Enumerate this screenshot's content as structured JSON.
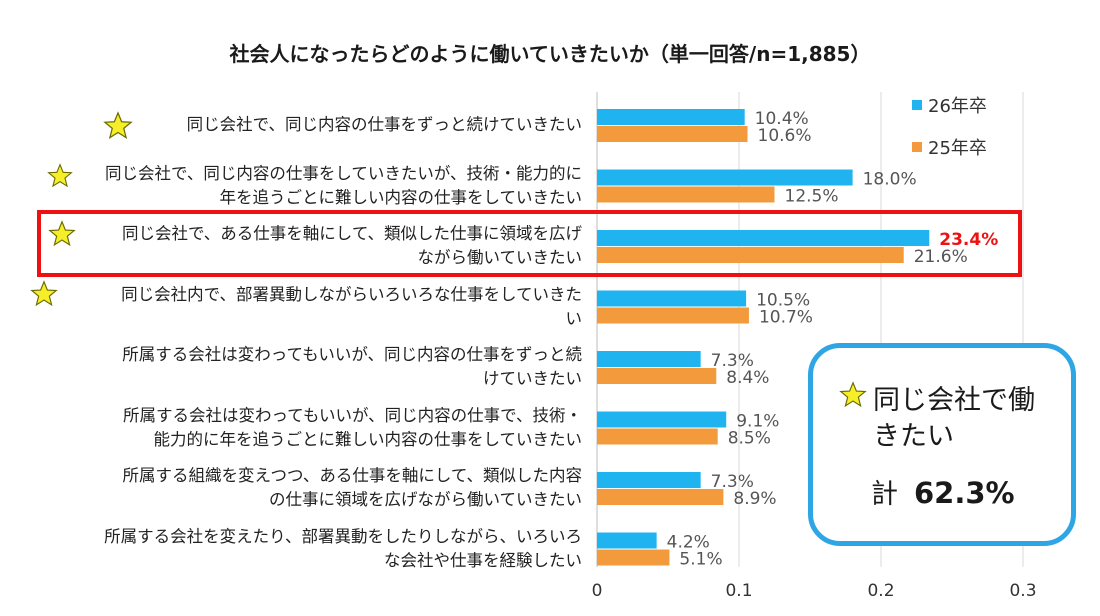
{
  "title": "社会人になったらどのように働いていきたいか（単一回答/n=1,885）",
  "legend": [
    {
      "name": "26年卒",
      "color": "#1fb4f0"
    },
    {
      "name": "25年卒",
      "color": "#f39b3c"
    }
  ],
  "highlight_color": "#ee1111",
  "chart_data": {
    "type": "bar",
    "orientation": "horizontal",
    "title": "社会人になったらどのように働いていきたいか（単一回答/n=1,885）",
    "categories": [
      {
        "lines": [
          "同じ会社で、同じ内容の仕事をずっと続けていきたい"
        ],
        "star": true
      },
      {
        "lines": [
          "同じ会社で、同じ内容の仕事をしていきたいが、技術・能力的に",
          "年を追うごとに難しい内容の仕事をしていきたい"
        ],
        "star": true
      },
      {
        "lines": [
          "同じ会社で、ある仕事を軸にして、類似した仕事に領域を広げ",
          "ながら働いていきたい"
        ],
        "star": true,
        "highlighted": true
      },
      {
        "lines": [
          "同じ会社内で、部署異動しながらいろいろな仕事をしていきた",
          "い"
        ],
        "star": true
      },
      {
        "lines": [
          "所属する会社は変わってもいいが、同じ内容の仕事をずっと続",
          "けていきたい"
        ],
        "star": false
      },
      {
        "lines": [
          "所属する会社は変わってもいいが、同じ内容の仕事で、技術・",
          "能力的に年を追うごとに難しい内容の仕事をしていきたい"
        ],
        "star": false
      },
      {
        "lines": [
          "所属する組織を変えつつ、ある仕事を軸にして、類似した内容",
          "の仕事に領域を広げながら働いていきたい"
        ],
        "star": false
      },
      {
        "lines": [
          "所属する会社を変えたり、部署異動をしたりしながら、いろいろ",
          "な会社や仕事を経験したい"
        ],
        "star": false
      }
    ],
    "series": [
      {
        "name": "26年卒",
        "color": "#1fb4f0",
        "values": [
          0.104,
          0.18,
          0.234,
          0.105,
          0.073,
          0.091,
          0.073,
          0.042
        ],
        "labels": [
          "10.4%",
          "18.0%",
          "23.4%",
          "10.5%",
          "7.3%",
          "9.1%",
          "7.3%",
          "4.2%"
        ]
      },
      {
        "name": "25年卒",
        "color": "#f39b3c",
        "values": [
          0.106,
          0.125,
          0.216,
          0.107,
          0.084,
          0.085,
          0.089,
          0.051
        ],
        "labels": [
          "10.6%",
          "12.5%",
          "21.6%",
          "10.7%",
          "8.4%",
          "8.5%",
          "8.9%",
          "5.1%"
        ]
      }
    ],
    "highlight_label_color": "#ee1111",
    "xlim": [
      0,
      0.3
    ],
    "xticks": [
      "0",
      "0.1",
      "0.2",
      "0.3"
    ],
    "grid": true,
    "legend_position": "top-right"
  },
  "summary": {
    "line1": "同じ会社で働",
    "line2": "きたい",
    "total_label": "計",
    "total_value": "62.3%"
  }
}
